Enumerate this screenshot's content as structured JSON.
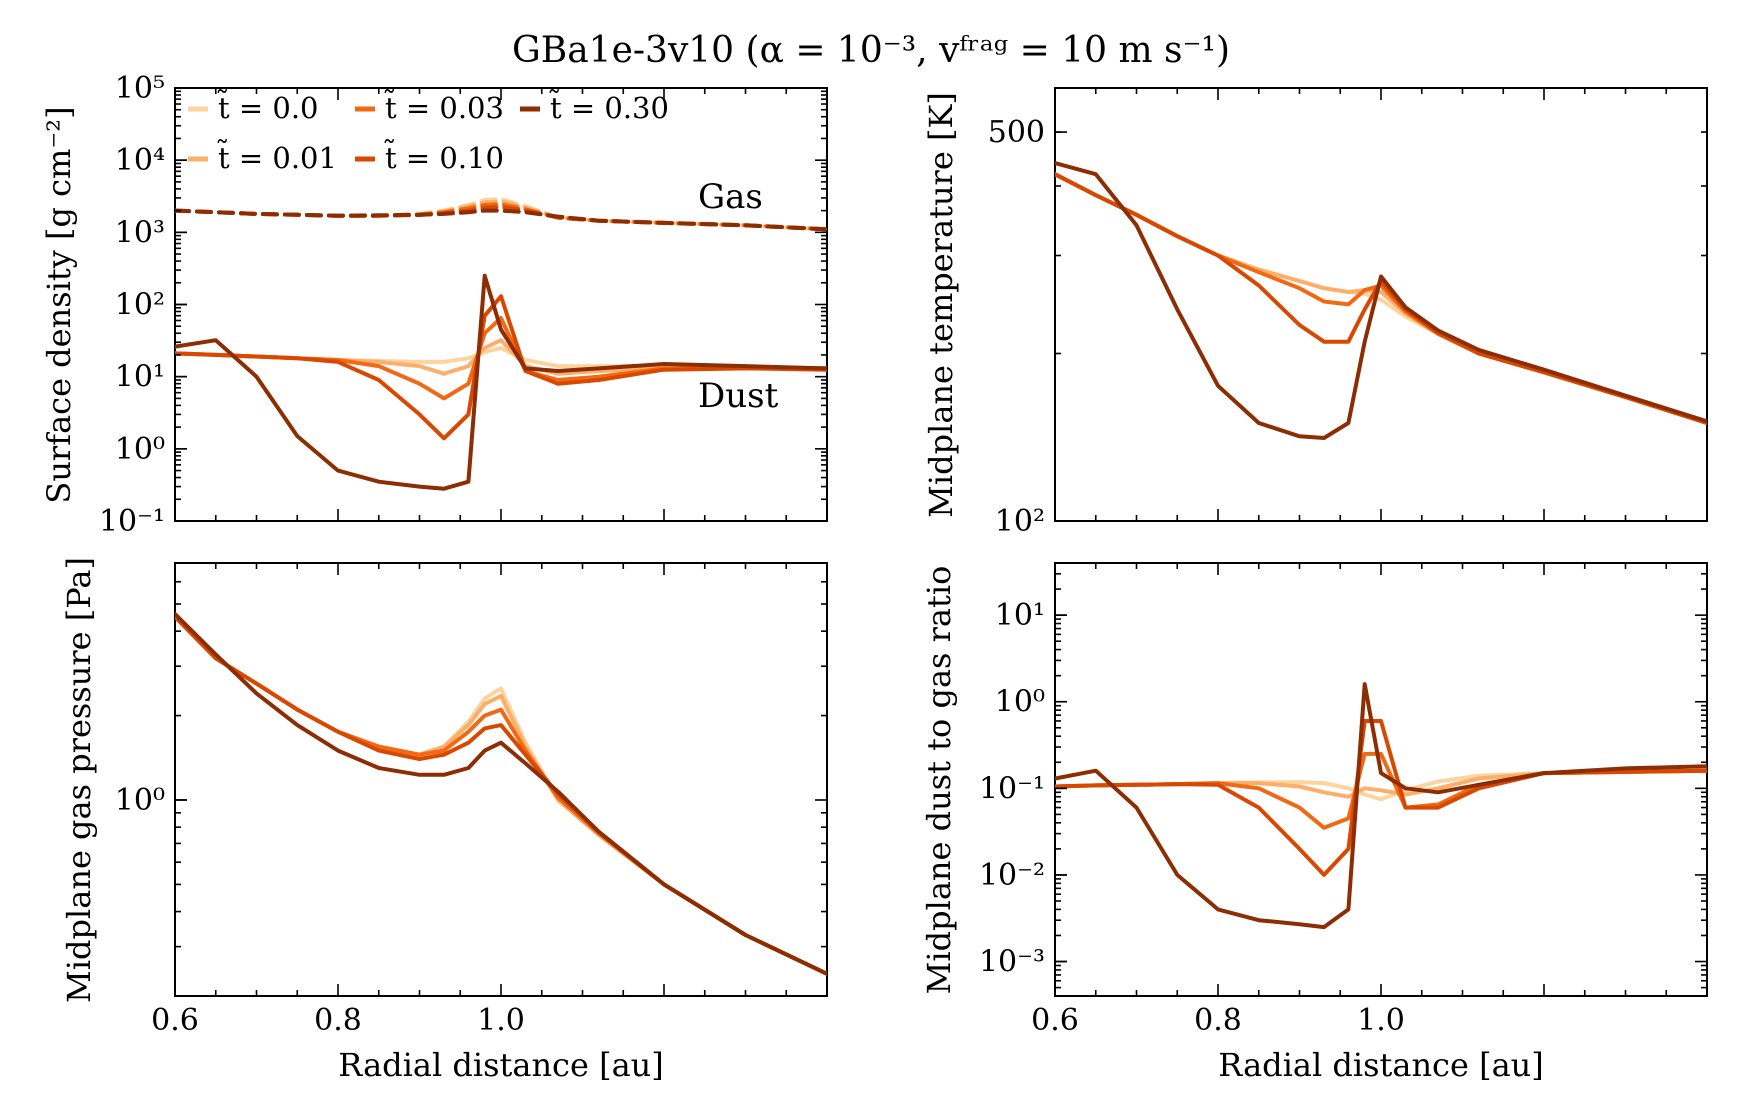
{
  "chart_data": {
    "title": "GBa1e-3v10 (α = 10⁻³, vᶠʳᵃᵍ = 10 m s⁻¹)",
    "type": "line",
    "x": [
      0.6,
      0.65,
      0.7,
      0.75,
      0.8,
      0.85,
      0.9,
      0.93,
      0.96,
      0.98,
      1.0,
      1.03,
      1.07,
      1.12,
      1.2,
      1.3,
      1.4
    ],
    "xlim": [
      0.6,
      1.4
    ],
    "xticks": [
      0.6,
      0.8,
      1.0
    ],
    "xtick_labels": [
      "0.6",
      "0.8",
      "1.0"
    ],
    "xlabel": "Radial distance [au]",
    "legend": {
      "placement": "top-left of surface density panel",
      "entries": [
        {
          "label": "t̃ = 0.0",
          "color": "#fdd49e"
        },
        {
          "label": "t̃ = 0.01",
          "color": "#fdae6b"
        },
        {
          "label": "t̃ = 0.03",
          "color": "#f16913"
        },
        {
          "label": "t̃ = 0.10",
          "color": "#d94801"
        },
        {
          "label": "t̃ = 0.30",
          "color": "#8c2d04"
        }
      ]
    },
    "panels": [
      {
        "id": "surface-density",
        "ylabel": "Surface density [g cm⁻²]",
        "yscale": "log",
        "ylim": [
          0.1,
          100000
        ],
        "yticks": [
          0.1,
          1,
          10,
          100,
          1000,
          10000,
          100000
        ],
        "ytick_labels": [
          "10⁻¹",
          "10⁰",
          "10¹",
          "10²",
          "10³",
          "10⁴",
          "10⁵"
        ],
        "annotations": [
          "Gas",
          "Dust"
        ],
        "series": [
          {
            "name": "Gas t̃ = 0.0",
            "dash": true,
            "values": [
              2000,
              1900,
              1800,
              1750,
              1700,
              1700,
              1800,
              2000,
              2400,
              2800,
              2900,
              2300,
              1600,
              1450,
              1350,
              1250,
              1100
            ]
          },
          {
            "name": "Gas t̃ = 0.01",
            "dash": true,
            "values": [
              2000,
              1900,
              1800,
              1750,
              1700,
              1700,
              1780,
              1950,
              2300,
              2600,
              2700,
              2200,
              1600,
              1450,
              1350,
              1250,
              1100
            ]
          },
          {
            "name": "Gas t̃ = 0.03",
            "dash": true,
            "values": [
              2000,
              1900,
              1800,
              1750,
              1700,
              1700,
              1760,
              1900,
              2150,
              2400,
              2450,
              2100,
              1600,
              1450,
              1350,
              1250,
              1100
            ]
          },
          {
            "name": "Gas t̃ = 0.10",
            "dash": true,
            "values": [
              2000,
              1900,
              1800,
              1750,
              1700,
              1700,
              1740,
              1850,
              2000,
              2200,
              2250,
              2000,
              1600,
              1450,
              1350,
              1250,
              1100
            ]
          },
          {
            "name": "Gas t̃ = 0.30",
            "dash": true,
            "values": [
              2000,
              1900,
              1800,
              1750,
              1700,
              1720,
              1750,
              1800,
              1900,
              2000,
              2000,
              1900,
              1650,
              1450,
              1350,
              1250,
              1100
            ]
          },
          {
            "name": "Dust t̃ = 0.0",
            "dash": false,
            "values": [
              21,
              20,
              19,
              18,
              17,
              16.5,
              16,
              16,
              18,
              22,
              25,
              17,
              14,
              14,
              14,
              13.5,
              13
            ]
          },
          {
            "name": "Dust t̃ = 0.01",
            "dash": false,
            "values": [
              21,
              20,
              19,
              18,
              17,
              16,
              14,
              11,
              14,
              25,
              32,
              14,
              11,
              12,
              13,
              13,
              13
            ]
          },
          {
            "name": "Dust t̃ = 0.03",
            "dash": false,
            "values": [
              21,
              20,
              19,
              18,
              17,
              14,
              8,
              5,
              8,
              40,
              65,
              12,
              9,
              10,
              13,
              13,
              13
            ]
          },
          {
            "name": "Dust t̃ = 0.10",
            "dash": false,
            "values": [
              21,
              20,
              19,
              18,
              16,
              9,
              3,
              1.4,
              3,
              70,
              130,
              12,
              8,
              9,
              12.5,
              13,
              12.5
            ]
          },
          {
            "name": "Dust t̃ = 0.30",
            "dash": false,
            "values": [
              26,
              32,
              10,
              1.5,
              0.5,
              0.35,
              0.3,
              0.28,
              0.35,
              250,
              45,
              13,
              12,
              13,
              15,
              14,
              13
            ]
          }
        ]
      },
      {
        "id": "midplane-temperature",
        "ylabel": "Midplane temperature [K]",
        "yscale": "log",
        "ylim": [
          100,
          600
        ],
        "yticks": [
          100,
          500
        ],
        "ytick_labels": [
          "10²",
          "500"
        ],
        "series": [
          {
            "name": "t̃ = 0.0",
            "values": [
              420,
              385,
              355,
              325,
              300,
              283,
              270,
              262,
              258,
              256,
              250,
              233,
              217,
              200,
              185,
              167,
              150
            ]
          },
          {
            "name": "t̃ = 0.01",
            "values": [
              420,
              385,
              355,
              325,
              300,
              283,
              270,
              262,
              258,
              260,
              258,
              236,
              217,
              200,
              185,
              167,
              150
            ]
          },
          {
            "name": "t̃ = 0.03",
            "values": [
              420,
              385,
              355,
              325,
              300,
              280,
              262,
              248,
              245,
              260,
              265,
              238,
              217,
              200,
              185,
              167,
              150
            ]
          },
          {
            "name": "t̃ = 0.10",
            "values": [
              420,
              385,
              355,
              325,
              300,
              265,
              225,
              210,
              210,
              240,
              270,
              240,
              218,
              200,
              185,
              167,
              150
            ]
          },
          {
            "name": "t̃ = 0.30",
            "values": [
              440,
              420,
              340,
              240,
              175,
              150,
              142,
              141,
              150,
              210,
              275,
              242,
              220,
              203,
              187,
              168,
              151
            ]
          }
        ]
      },
      {
        "id": "midplane-gas-pressure",
        "ylabel": "Midplane gas pressure [Pa]",
        "yscale": "log",
        "ylim": [
          0.2,
          7
        ],
        "yticks": [
          1
        ],
        "ytick_labels": [
          "10⁰"
        ],
        "series": [
          {
            "name": "t̃ = 0.0",
            "values": [
              4.5,
              3.2,
              2.6,
              2.1,
              1.75,
              1.55,
              1.45,
              1.55,
              1.9,
              2.3,
              2.5,
              1.6,
              1.0,
              0.75,
              0.5,
              0.33,
              0.24
            ]
          },
          {
            "name": "t̃ = 0.01",
            "values": [
              4.5,
              3.2,
              2.6,
              2.1,
              1.75,
              1.55,
              1.45,
              1.55,
              1.85,
              2.2,
              2.35,
              1.55,
              1.0,
              0.75,
              0.5,
              0.33,
              0.24
            ]
          },
          {
            "name": "t̃ = 0.03",
            "values": [
              4.5,
              3.2,
              2.6,
              2.1,
              1.75,
              1.55,
              1.45,
              1.5,
              1.75,
              2.0,
              2.1,
              1.5,
              1.02,
              0.76,
              0.5,
              0.33,
              0.24
            ]
          },
          {
            "name": "t̃ = 0.10",
            "values": [
              4.5,
              3.2,
              2.6,
              2.1,
              1.75,
              1.5,
              1.4,
              1.45,
              1.6,
              1.8,
              1.85,
              1.45,
              1.05,
              0.77,
              0.5,
              0.33,
              0.24
            ]
          },
          {
            "name": "t̃ = 0.30",
            "values": [
              4.6,
              3.3,
              2.4,
              1.85,
              1.5,
              1.3,
              1.23,
              1.23,
              1.3,
              1.5,
              1.6,
              1.35,
              1.07,
              0.77,
              0.5,
              0.33,
              0.24
            ]
          }
        ]
      },
      {
        "id": "midplane-dust-to-gas-ratio",
        "ylabel": "Midplane dust to gas ratio",
        "yscale": "log",
        "ylim": [
          0.0004,
          40
        ],
        "yticks": [
          0.001,
          0.01,
          0.1,
          1,
          10
        ],
        "ytick_labels": [
          "10⁻³",
          "10⁻²",
          "10⁻¹",
          "10⁰",
          "10¹"
        ],
        "series": [
          {
            "name": "t̃ = 0.0",
            "values": [
              0.105,
              0.108,
              0.11,
              0.112,
              0.115,
              0.117,
              0.118,
              0.115,
              0.1,
              0.085,
              0.075,
              0.095,
              0.12,
              0.14,
              0.15,
              0.155,
              0.16
            ]
          },
          {
            "name": "t̃ = 0.01",
            "values": [
              0.105,
              0.108,
              0.11,
              0.112,
              0.115,
              0.115,
              0.105,
              0.09,
              0.08,
              0.1,
              0.095,
              0.085,
              0.1,
              0.13,
              0.15,
              0.155,
              0.16
            ]
          },
          {
            "name": "t̃ = 0.03",
            "values": [
              0.105,
              0.108,
              0.11,
              0.112,
              0.115,
              0.1,
              0.06,
              0.035,
              0.045,
              0.25,
              0.25,
              0.06,
              0.065,
              0.11,
              0.15,
              0.155,
              0.16
            ]
          },
          {
            "name": "t̃ = 0.10",
            "values": [
              0.105,
              0.108,
              0.11,
              0.112,
              0.11,
              0.06,
              0.02,
              0.01,
              0.02,
              0.6,
              0.6,
              0.06,
              0.06,
              0.1,
              0.15,
              0.155,
              0.16
            ]
          },
          {
            "name": "t̃ = 0.30",
            "values": [
              0.13,
              0.16,
              0.06,
              0.01,
              0.004,
              0.003,
              0.0027,
              0.0025,
              0.004,
              1.6,
              0.15,
              0.1,
              0.09,
              0.11,
              0.15,
              0.17,
              0.18
            ]
          }
        ]
      }
    ]
  }
}
